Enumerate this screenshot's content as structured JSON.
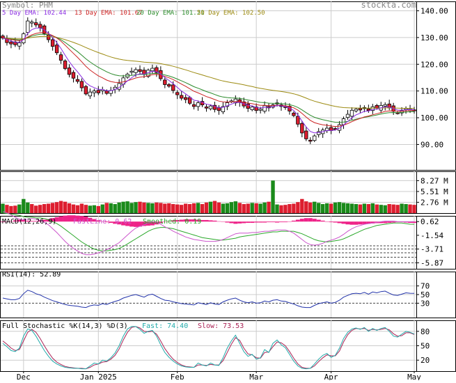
{
  "header": {
    "symbol": "Symbol: PHM",
    "watermark": "stockta.com",
    "ema5": "5 Day EMA: 102.44",
    "ema13": "13 Day EMA: 101.67",
    "ema20": "20 Day EMA: 101.21",
    "ema50": "50 Day EMA: 102.50"
  },
  "colors": {
    "up": "#1a8a1a",
    "down": "#dd1e2f",
    "ema5": "#8a2be2",
    "ema13": "#cc2222",
    "ema20": "#2a8a2a",
    "ema50": "#9c8a10",
    "macd_fast": "#cc55cc",
    "macd_slow": "#2aa82a",
    "macd_hist": "#ee2288",
    "rsi_line": "#2233aa",
    "stoch_fast": "#22aaaa",
    "stoch_slow": "#aa2255",
    "grid": "#cccccc",
    "dash": "#444444"
  },
  "panels": {
    "macd_label": "MACD(12,26,9)",
    "macd_fast": "FastLine: 0.62",
    "macd_smooth": "Smoothed: 0.19",
    "rsi_label": "RSI(14): 52.89",
    "stoch_label": "Full Stochastic %K(14,3) %D(3)",
    "stoch_fast": "Fast: 74.40",
    "stoch_slow": "Slow: 73.53"
  },
  "chart_data": [
    {
      "type": "candlestick",
      "ylim": [
        81,
        143
      ],
      "y_ticks": [
        "140.00",
        "130.00",
        "120.00",
        "110.00",
        "100.00",
        "90.00"
      ],
      "y_tick_values": [
        140,
        130,
        120,
        110,
        100,
        90
      ],
      "x_ticks": [
        "Dec",
        "Jan 2025",
        "Feb",
        "Mar",
        "Apr",
        "May"
      ],
      "x_tick_index": [
        5,
        23,
        42,
        61,
        79,
        99
      ],
      "close": [
        129.8,
        128.1,
        127.6,
        127.3,
        128.0,
        131.4,
        136.2,
        135.8,
        134.7,
        133.6,
        131.5,
        129.2,
        126.7,
        124.3,
        121.5,
        118.4,
        116.2,
        114.8,
        113.6,
        111.2,
        108.9,
        109.6,
        110.0,
        109.3,
        110.5,
        109.1,
        110.2,
        111.4,
        112.8,
        114.9,
        116.3,
        117.4,
        118.0,
        117.3,
        116.2,
        117.8,
        118.5,
        116.9,
        114.6,
        112.4,
        111.8,
        110.2,
        108.6,
        107.3,
        106.8,
        105.4,
        104.2,
        105.6,
        104.8,
        103.6,
        104.4,
        103.1,
        102.7,
        104.2,
        105.6,
        106.3,
        107.0,
        105.7,
        104.4,
        103.5,
        104.0,
        102.7,
        103.2,
        104.5,
        103.7,
        104.8,
        105.3,
        104.2,
        103.8,
        102.5,
        100.8,
        97.6,
        94.3,
        92.1,
        91.5,
        93.2,
        94.8,
        95.4,
        96.1,
        95.2,
        95.8,
        97.4,
        99.6,
        101.3,
        102.8,
        103.2,
        102.9,
        103.8,
        102.7,
        104.1,
        103.6,
        104.6,
        104.9,
        103.7,
        102.4,
        101.8,
        102.6,
        103.4,
        103.2,
        102.9
      ]
    },
    {
      "type": "bar",
      "name": "volume",
      "y_ticks": [
        "8.27 M",
        "5.51 M",
        "2.76 M"
      ],
      "y_tick_values": [
        8.27,
        5.51,
        2.76
      ],
      "ylim": [
        0,
        10.3
      ],
      "values": [
        2.4,
        2.1,
        1.8,
        1.9,
        2.2,
        3.6,
        2.7,
        2.3,
        1.9,
        2.1,
        2.3,
        2.4,
        2.6,
        2.8,
        3.1,
        2.9,
        2.5,
        2.2,
        2.0,
        2.4,
        2.1,
        1.9,
        2.0,
        1.8,
        2.2,
        2.6,
        2.5,
        2.3,
        2.7,
        2.9,
        3.0,
        2.6,
        2.8,
        2.9,
        2.7,
        2.6,
        2.5,
        2.7,
        2.6,
        2.4,
        2.5,
        2.3,
        2.2,
        2.1,
        2.4,
        2.3,
        2.5,
        2.6,
        2.3,
        2.7,
        2.9,
        3.1,
        2.7,
        2.4,
        2.5,
        2.8,
        3.0,
        2.6,
        2.3,
        2.4,
        2.6,
        2.5,
        2.4,
        2.7,
        2.9,
        8.3,
        2.2,
        2.0,
        2.1,
        2.3,
        2.4,
        2.8,
        3.6,
        3.0,
        2.7,
        2.9,
        2.6,
        2.3,
        2.5,
        2.4,
        2.7,
        2.8,
        2.6,
        2.5,
        2.4,
        2.3,
        2.2,
        2.4,
        2.3,
        2.5,
        2.2,
        2.1,
        2.0,
        2.3,
        2.2,
        2.1,
        2.4,
        2.3,
        2.2,
        2.1
      ]
    },
    {
      "type": "line",
      "name": "macd",
      "y_ticks": [
        "0.62",
        "-1.54",
        "-3.71",
        "-5.87"
      ],
      "y_tick_values": [
        0.62,
        -1.54,
        -3.71,
        -5.87
      ],
      "ylim": [
        -6.6,
        1.3
      ],
      "dashed_levels": [
        -3.2,
        -3.71,
        -4.3,
        -5.0,
        -5.87
      ],
      "series": [
        {
          "name": "FastLine",
          "values": [
            2.2,
            2.0,
            1.7,
            1.3,
            1.0,
            0.9,
            1.0,
            1.1,
            1.0,
            0.8,
            0.5,
            0.1,
            -0.5,
            -1.1,
            -1.8,
            -2.5,
            -3.1,
            -3.6,
            -4.0,
            -4.4,
            -4.6,
            -4.6,
            -4.5,
            -4.3,
            -4.1,
            -3.8,
            -3.5,
            -3.1,
            -2.7,
            -2.1,
            -1.5,
            -0.9,
            -0.4,
            -0.1,
            0.1,
            0.4,
            0.6,
            0.5,
            0.2,
            -0.2,
            -0.5,
            -0.9,
            -1.2,
            -1.5,
            -1.8,
            -2.0,
            -2.2,
            -2.3,
            -2.4,
            -2.5,
            -2.5,
            -2.5,
            -2.4,
            -2.2,
            -1.9,
            -1.6,
            -1.3,
            -1.2,
            -1.2,
            -1.2,
            -1.1,
            -1.1,
            -1.0,
            -0.9,
            -0.9,
            -0.8,
            -0.7,
            -0.7,
            -0.7,
            -0.9,
            -1.2,
            -1.7,
            -2.2,
            -2.7,
            -3.0,
            -3.1,
            -3.0,
            -2.8,
            -2.5,
            -2.3,
            -2.1,
            -1.8,
            -1.4,
            -0.9,
            -0.5,
            -0.2,
            0.0,
            0.2,
            0.3,
            0.4,
            0.5,
            0.6,
            0.7,
            0.7,
            0.7,
            0.6,
            0.6,
            0.6,
            0.6,
            0.62
          ]
        },
        {
          "name": "Smoothed",
          "values": [
            2.0,
            1.9,
            1.8,
            1.7,
            1.6,
            1.4,
            1.3,
            1.3,
            1.2,
            1.2,
            1.1,
            0.9,
            0.6,
            0.3,
            -0.1,
            -0.6,
            -1.1,
            -1.6,
            -2.1,
            -2.6,
            -3.0,
            -3.4,
            -3.7,
            -3.9,
            -4.0,
            -4.0,
            -3.9,
            -3.8,
            -3.6,
            -3.3,
            -2.9,
            -2.5,
            -2.1,
            -1.7,
            -1.3,
            -0.9,
            -0.6,
            -0.4,
            -0.3,
            -0.3,
            -0.4,
            -0.5,
            -0.7,
            -0.9,
            -1.1,
            -1.3,
            -1.5,
            -1.7,
            -1.9,
            -2.0,
            -2.1,
            -2.2,
            -2.3,
            -2.3,
            -2.2,
            -2.1,
            -2.0,
            -1.8,
            -1.7,
            -1.6,
            -1.5,
            -1.4,
            -1.3,
            -1.2,
            -1.1,
            -1.0,
            -1.0,
            -0.9,
            -0.9,
            -0.9,
            -0.9,
            -1.1,
            -1.3,
            -1.6,
            -1.9,
            -2.2,
            -2.4,
            -2.5,
            -2.6,
            -2.5,
            -2.4,
            -2.3,
            -2.1,
            -1.8,
            -1.5,
            -1.2,
            -0.9,
            -0.6,
            -0.4,
            -0.2,
            0.0,
            0.1,
            0.2,
            0.3,
            0.4,
            0.4,
            0.4,
            0.3,
            0.2,
            0.19
          ]
        }
      ]
    },
    {
      "type": "line",
      "name": "rsi",
      "y_ticks": [
        "70",
        "50",
        "30"
      ],
      "y_tick_values": [
        70,
        50,
        30
      ],
      "ylim": [
        0,
        100
      ],
      "series": [
        {
          "name": "RSI",
          "values": [
            42,
            40,
            38,
            38,
            41,
            52,
            60,
            57,
            52,
            49,
            44,
            40,
            36,
            33,
            30,
            27,
            25,
            24,
            23,
            21,
            20,
            24,
            26,
            25,
            29,
            27,
            31,
            34,
            37,
            42,
            45,
            48,
            50,
            47,
            44,
            49,
            51,
            46,
            41,
            37,
            36,
            33,
            31,
            29,
            28,
            27,
            26,
            31,
            29,
            27,
            31,
            28,
            27,
            33,
            37,
            40,
            42,
            37,
            33,
            31,
            33,
            30,
            31,
            35,
            33,
            37,
            38,
            35,
            34,
            31,
            28,
            24,
            21,
            20,
            20,
            25,
            29,
            31,
            33,
            30,
            32,
            37,
            44,
            48,
            52,
            53,
            52,
            55,
            51,
            56,
            54,
            57,
            58,
            53,
            49,
            48,
            51,
            54,
            53,
            52.89
          ]
        }
      ]
    },
    {
      "type": "line",
      "name": "stochastic",
      "y_ticks": [
        "80",
        "50",
        "20"
      ],
      "y_tick_values": [
        80,
        50,
        20
      ],
      "ylim": [
        0,
        100
      ],
      "series": [
        {
          "name": "Fast",
          "values": [
            55,
            48,
            40,
            38,
            45,
            70,
            85,
            82,
            70,
            55,
            40,
            28,
            18,
            12,
            8,
            5,
            4,
            3,
            3,
            2,
            2,
            8,
            14,
            12,
            20,
            18,
            25,
            35,
            50,
            70,
            85,
            90,
            90,
            84,
            76,
            80,
            82,
            70,
            52,
            36,
            26,
            18,
            12,
            8,
            6,
            5,
            5,
            14,
            10,
            8,
            14,
            10,
            9,
            25,
            45,
            60,
            72,
            55,
            38,
            28,
            32,
            22,
            25,
            42,
            36,
            55,
            62,
            52,
            46,
            32,
            18,
            8,
            3,
            2,
            3,
            12,
            22,
            30,
            34,
            26,
            30,
            45,
            65,
            78,
            85,
            87,
            84,
            88,
            80,
            86,
            82,
            86,
            88,
            80,
            70,
            68,
            74,
            80,
            78,
            74.4
          ]
        },
        {
          "name": "Slow",
          "values": [
            60,
            53,
            45,
            40,
            42,
            60,
            78,
            84,
            78,
            65,
            50,
            36,
            24,
            16,
            11,
            7,
            5,
            4,
            3,
            3,
            2,
            5,
            10,
            12,
            16,
            17,
            22,
            30,
            43,
            62,
            78,
            88,
            90,
            87,
            80,
            79,
            80,
            74,
            60,
            44,
            32,
            22,
            15,
            10,
            7,
            6,
            5,
            10,
            10,
            9,
            11,
            10,
            10,
            19,
            36,
            53,
            67,
            61,
            45,
            33,
            31,
            25,
            24,
            36,
            37,
            48,
            58,
            56,
            50,
            38,
            24,
            12,
            5,
            3,
            3,
            8,
            17,
            25,
            31,
            29,
            29,
            39,
            58,
            73,
            82,
            86,
            85,
            86,
            82,
            84,
            83,
            84,
            86,
            83,
            75,
            70,
            71,
            77,
            77,
            73.53
          ]
        }
      ]
    }
  ]
}
